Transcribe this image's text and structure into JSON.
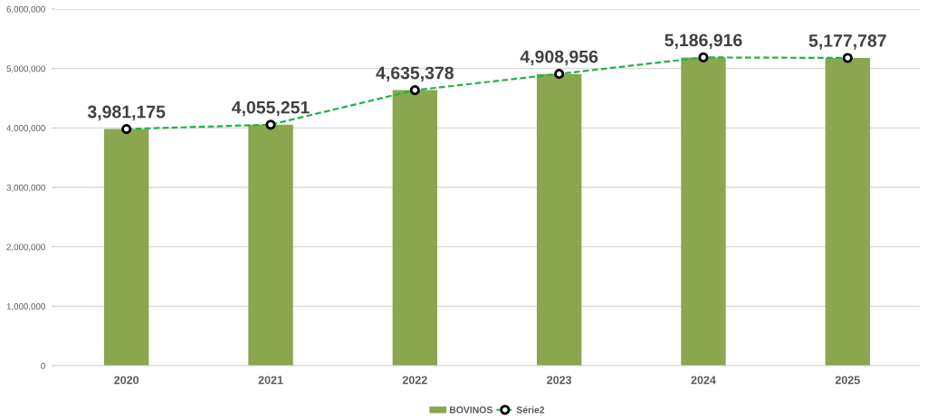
{
  "chart_data": {
    "type": "bar",
    "categories": [
      "2020",
      "2021",
      "2022",
      "2023",
      "2024",
      "2025"
    ],
    "series": [
      {
        "name": "BOVINOS",
        "color": "#8aa64e",
        "values": [
          3981175,
          4055251,
          4635378,
          4908956,
          5186916,
          5177787
        ]
      },
      {
        "name": "Série2",
        "type": "line",
        "color": "#22b14c",
        "marker": "circle",
        "line_style": "dashed",
        "values": [
          3981175,
          4055251,
          4635378,
          4908956,
          5186916,
          5177787
        ],
        "value_labels": [
          "3,981,175",
          "4,055,251",
          "4,635,378",
          "4,908,956",
          "5,186,916",
          "5,177,787"
        ]
      }
    ],
    "ylim": [
      0,
      6000000
    ],
    "yticks": [
      0,
      {
        "value": 1000000,
        "label": "1,000,000"
      },
      {
        "value": 2000000,
        "label": "2,000,000"
      },
      {
        "value": 3000000,
        "label": "3,000,000"
      },
      {
        "value": 4000000,
        "label": "4,000,000"
      },
      {
        "value": 5000000,
        "label": "5,000,000"
      },
      {
        "value": 6000000,
        "label": "6,000,000"
      }
    ],
    "grid": "y",
    "legend": "bottom"
  }
}
